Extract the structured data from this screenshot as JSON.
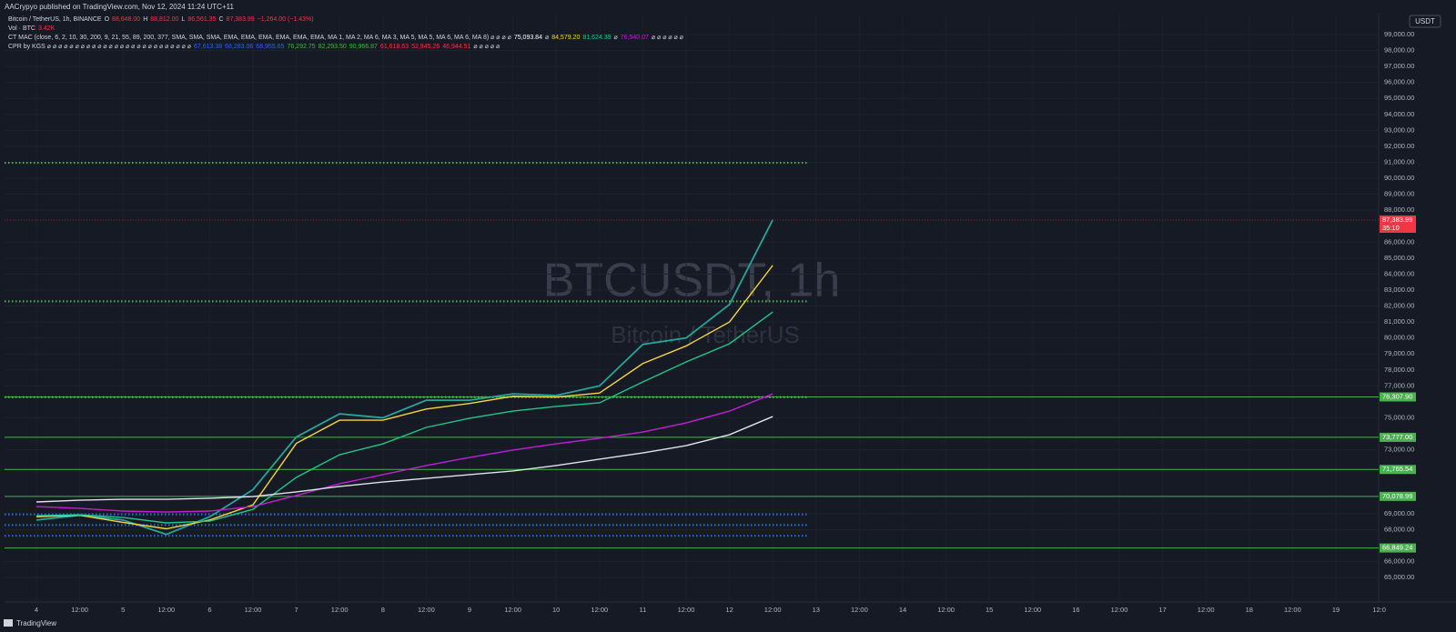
{
  "header": {
    "published": "AACrypyo published on TradingView.com, Nov 12, 2024 11:24 UTC+11",
    "lines": [
      {
        "parts": [
          {
            "text": "Bitcoin / TetherUS, 1h, BINANCE",
            "color": "#d1d4dc"
          },
          {
            "text": "O",
            "color": "#d1d4dc"
          },
          {
            "text": "88,648.00",
            "color": "#f23645"
          },
          {
            "text": "H",
            "color": "#d1d4dc"
          },
          {
            "text": "88,812.00",
            "color": "#f23645"
          },
          {
            "text": "L",
            "color": "#d1d4dc"
          },
          {
            "text": "86,561.35",
            "color": "#f23645"
          },
          {
            "text": "C",
            "color": "#d1d4dc"
          },
          {
            "text": "87,383.99",
            "color": "#f23645"
          },
          {
            "text": "−1,264.00 (−1.43%)",
            "color": "#f23645"
          }
        ]
      },
      {
        "parts": [
          {
            "text": "Vol · BTC",
            "color": "#d1d4dc"
          },
          {
            "text": "3.42K",
            "color": "#f23645"
          }
        ]
      },
      {
        "parts": [
          {
            "text": "CT MAC (close, 6, 2, 10, 30, 200, 9, 21, 55, 89, 200, 377, SMA, SMA, SMA, EMA, EMA, EMA, EMA, EMA, EMA, MA 1, MA 2, MA 6, MA 3, MA 5, MA 5, MA 6, MA 6, MA 8) ⌀ ⌀ ⌀ ⌀",
            "color": "#d1d4dc"
          },
          {
            "text": "75,093.84",
            "color": "#ffffff"
          },
          {
            "text": "⌀",
            "color": "#d1d4dc"
          },
          {
            "text": "84,579.20",
            "color": "#f5d63b"
          },
          {
            "text": "81,624.39",
            "color": "#22c58b"
          },
          {
            "text": "⌀",
            "color": "#d1d4dc"
          },
          {
            "text": "76,540.07",
            "color": "#c21ed6"
          },
          {
            "text": "⌀ ⌀ ⌀ ⌀ ⌀ ⌀",
            "color": "#d1d4dc"
          }
        ]
      },
      {
        "parts": [
          {
            "text": "CPR by KGS ⌀ ⌀ ⌀ ⌀ ⌀ ⌀ ⌀ ⌀ ⌀ ⌀ ⌀ ⌀ ⌀ ⌀ ⌀ ⌀ ⌀ ⌀ ⌀ ⌀ ⌀ ⌀ ⌀ ⌀ ⌀ ⌀",
            "color": "#d1d4dc"
          },
          {
            "text": "67,613.38",
            "value": 67613.38,
            "color": "#2962ff"
          },
          {
            "text": "68,283.06",
            "value": 68283.06,
            "color": "#2962ff"
          },
          {
            "text": "68,955.65",
            "value": 68955.65,
            "color": "#2962ff"
          },
          {
            "text": "76,292.75",
            "value": 76292.75,
            "color": "#4caf50"
          },
          {
            "text": "82,293.50",
            "value": 82293.5,
            "color": "#4caf50"
          },
          {
            "text": "90,966.87",
            "value": 90966.87,
            "color": "#4caf50"
          },
          {
            "text": "61,618.63",
            "value": 61618.63,
            "color": "#f23645"
          },
          {
            "text": "52,945.26",
            "value": 52945.26,
            "color": "#f23645"
          },
          {
            "text": "46,944.51",
            "value": 46944.51,
            "color": "#f23645"
          },
          {
            "text": "⌀ ⌀ ⌀ ⌀ ⌀",
            "color": "#d1d4dc"
          }
        ]
      }
    ]
  },
  "currency": "USDT",
  "footer": "TradingView",
  "chart_data": {
    "type": "line",
    "title": "BTCUSDT, 1h",
    "subtitle": "Bitcoin / TetherUS",
    "categories": [
      "4",
      "12:00",
      "5",
      "12:00",
      "6",
      "12:00",
      "7",
      "12:00",
      "8",
      "12:00",
      "9",
      "12:00",
      "10",
      "12:00",
      "11",
      "12:00",
      "12",
      "12:00",
      "13",
      "12:00",
      "14",
      "12:00",
      "15",
      "12:00",
      "16",
      "12:00",
      "17",
      "12:00",
      "18",
      "12:00",
      "19",
      "12:0"
    ],
    "series": [
      {
        "color": "#26a69a",
        "values": [
          68600,
          68900,
          68600,
          67700,
          68800,
          70500,
          73800,
          75250,
          75000,
          76100,
          76100,
          76500,
          76400,
          77000,
          79600,
          80000,
          82100,
          87400,
          null,
          null,
          null,
          null,
          null,
          null,
          null,
          null,
          null,
          null,
          null,
          null,
          null,
          null
        ]
      },
      {
        "color": "#f5d63b",
        "values": [
          68800,
          68900,
          68450,
          68050,
          68600,
          69550,
          73400,
          74850,
          74850,
          75550,
          75900,
          76350,
          76300,
          76550,
          78400,
          79500,
          81000,
          84550,
          null,
          null,
          null,
          null,
          null,
          null,
          null,
          null,
          null,
          null,
          null,
          null,
          null,
          null
        ]
      },
      {
        "color": "#22c58b",
        "values": [
          68870,
          68930,
          68760,
          68420,
          68530,
          69270,
          71270,
          72690,
          73370,
          74400,
          74970,
          75420,
          75710,
          75940,
          77250,
          78500,
          79640,
          81630,
          null,
          null,
          null,
          null,
          null,
          null,
          null,
          null,
          null,
          null,
          null,
          null,
          null,
          null
        ]
      },
      {
        "color": "#c21ed6",
        "values": [
          69440,
          69330,
          69160,
          69100,
          69160,
          69440,
          70130,
          70870,
          71440,
          72010,
          72520,
          72980,
          73370,
          73720,
          74110,
          74680,
          75420,
          76500,
          null,
          null,
          null,
          null,
          null,
          null,
          null,
          null,
          null,
          null,
          null,
          null,
          null,
          null
        ]
      },
      {
        "color": "#e0e3eb",
        "values": [
          69730,
          69840,
          69900,
          69900,
          69960,
          70070,
          70360,
          70700,
          70980,
          71210,
          71440,
          71670,
          72010,
          72410,
          72800,
          73260,
          73940,
          75080,
          null,
          null,
          null,
          null,
          null,
          null,
          null,
          null,
          null,
          null,
          null,
          null,
          null,
          null
        ]
      }
    ],
    "levels": [
      {
        "value": 76307.9,
        "label": "76,307.90"
      },
      {
        "value": 73777,
        "label": "73,777.00"
      },
      {
        "value": 71765.54,
        "label": "71,765.54"
      },
      {
        "value": 70078.99,
        "label": "70,078.99"
      },
      {
        "value": 66849.24,
        "label": "66,849.24"
      }
    ],
    "level_color": "#4caf50",
    "last": {
      "value": 87383.99,
      "label": "87,383.99",
      "countdown": "35:10",
      "color": "#f23645"
    },
    "ylim": [
      63580,
      100310
    ],
    "yticks": [
      {
        "value": 99000,
        "label": "99,000.00"
      },
      {
        "value": 98000,
        "label": "98,000.00"
      },
      {
        "value": 97000,
        "label": "97,000.00"
      },
      {
        "value": 96000,
        "label": "96,000.00"
      },
      {
        "value": 95000,
        "label": "95,000.00"
      },
      {
        "value": 94000,
        "label": "94,000.00"
      },
      {
        "value": 93000,
        "label": "93,000.00"
      },
      {
        "value": 92000,
        "label": "92,000.00"
      },
      {
        "value": 91000,
        "label": "91,000.00"
      },
      {
        "value": 90000,
        "label": "90,000.00"
      },
      {
        "value": 89000,
        "label": "89,000.00"
      },
      {
        "value": 88000,
        "label": "88,000.00"
      },
      {
        "value": 86000,
        "label": "86,000.00"
      },
      {
        "value": 85000,
        "label": "85,000.00"
      },
      {
        "value": 84000,
        "label": "84,000.00"
      },
      {
        "value": 83000,
        "label": "83,000.00"
      },
      {
        "value": 82000,
        "label": "82,000.00"
      },
      {
        "value": 81000,
        "label": "81,000.00"
      },
      {
        "value": 80000,
        "label": "80,000.00"
      },
      {
        "value": 79000,
        "label": "79,000.00"
      },
      {
        "value": 78000,
        "label": "78,000.00"
      },
      {
        "value": 77000,
        "label": "77,000.00"
      },
      {
        "value": 75000,
        "label": "75,000.00"
      },
      {
        "value": 73000,
        "label": "73,000.00"
      },
      {
        "value": 69000,
        "label": "69,000.00"
      },
      {
        "value": 68000,
        "label": "68,000.00"
      },
      {
        "value": 66000,
        "label": "66,000.00"
      },
      {
        "value": 65000,
        "label": "65,000.00"
      }
    ],
    "grid": true
  }
}
